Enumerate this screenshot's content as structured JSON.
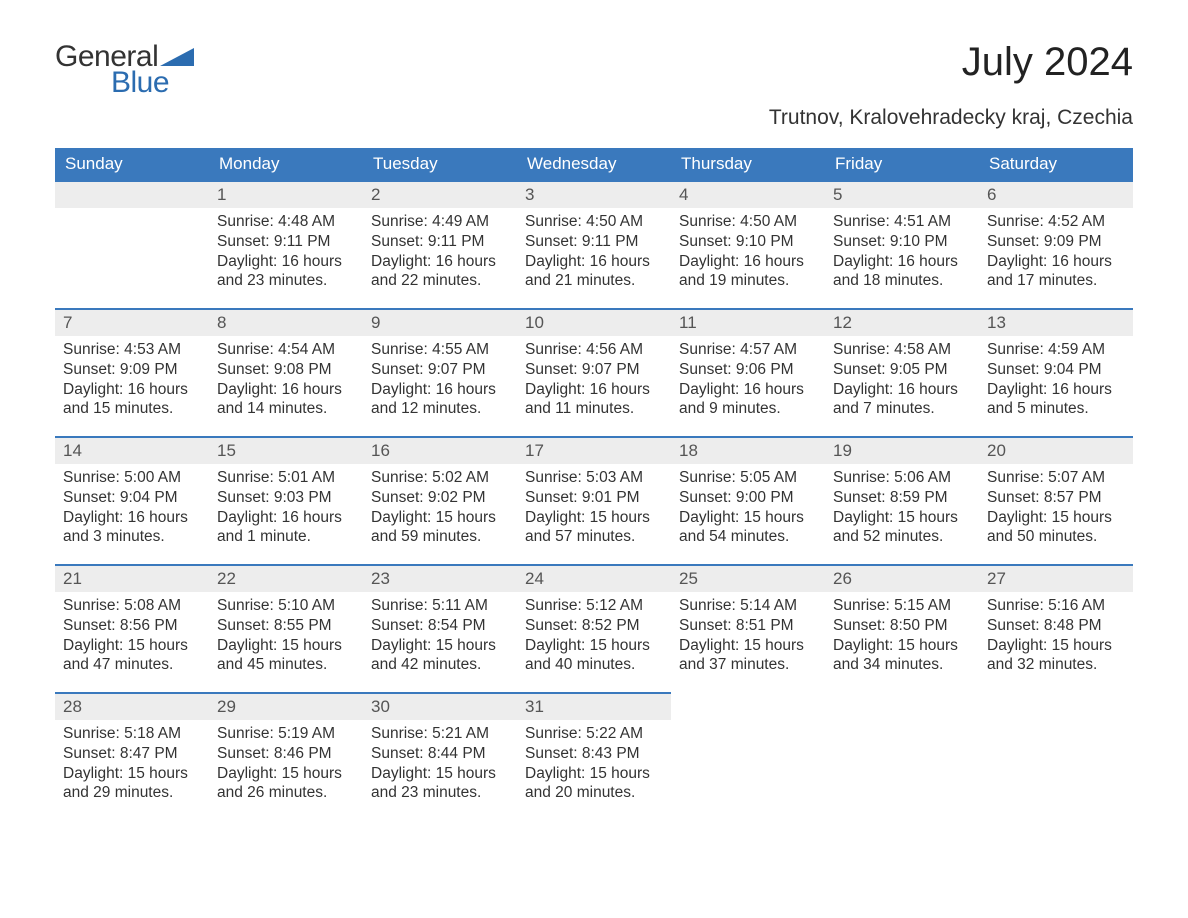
{
  "logo": {
    "general": "General",
    "blue": "Blue"
  },
  "title": "July 2024",
  "subtitle": "Trutnov, Kralovehradecky kraj, Czechia",
  "colors": {
    "header_bg": "#3a79bd",
    "header_text": "#ffffff",
    "dayhead_bg": "#ededed",
    "dayhead_border": "#3a79bd",
    "body_text": "#333333",
    "logo_blue": "#2b6cb0",
    "page_bg": "#ffffff"
  },
  "weekdays": [
    "Sunday",
    "Monday",
    "Tuesday",
    "Wednesday",
    "Thursday",
    "Friday",
    "Saturday"
  ],
  "first_weekday_offset": 1,
  "days": [
    {
      "n": "1",
      "sunrise": "Sunrise: 4:48 AM",
      "sunset": "Sunset: 9:11 PM",
      "daylight": "Daylight: 16 hours and 23 minutes."
    },
    {
      "n": "2",
      "sunrise": "Sunrise: 4:49 AM",
      "sunset": "Sunset: 9:11 PM",
      "daylight": "Daylight: 16 hours and 22 minutes."
    },
    {
      "n": "3",
      "sunrise": "Sunrise: 4:50 AM",
      "sunset": "Sunset: 9:11 PM",
      "daylight": "Daylight: 16 hours and 21 minutes."
    },
    {
      "n": "4",
      "sunrise": "Sunrise: 4:50 AM",
      "sunset": "Sunset: 9:10 PM",
      "daylight": "Daylight: 16 hours and 19 minutes."
    },
    {
      "n": "5",
      "sunrise": "Sunrise: 4:51 AM",
      "sunset": "Sunset: 9:10 PM",
      "daylight": "Daylight: 16 hours and 18 minutes."
    },
    {
      "n": "6",
      "sunrise": "Sunrise: 4:52 AM",
      "sunset": "Sunset: 9:09 PM",
      "daylight": "Daylight: 16 hours and 17 minutes."
    },
    {
      "n": "7",
      "sunrise": "Sunrise: 4:53 AM",
      "sunset": "Sunset: 9:09 PM",
      "daylight": "Daylight: 16 hours and 15 minutes."
    },
    {
      "n": "8",
      "sunrise": "Sunrise: 4:54 AM",
      "sunset": "Sunset: 9:08 PM",
      "daylight": "Daylight: 16 hours and 14 minutes."
    },
    {
      "n": "9",
      "sunrise": "Sunrise: 4:55 AM",
      "sunset": "Sunset: 9:07 PM",
      "daylight": "Daylight: 16 hours and 12 minutes."
    },
    {
      "n": "10",
      "sunrise": "Sunrise: 4:56 AM",
      "sunset": "Sunset: 9:07 PM",
      "daylight": "Daylight: 16 hours and 11 minutes."
    },
    {
      "n": "11",
      "sunrise": "Sunrise: 4:57 AM",
      "sunset": "Sunset: 9:06 PM",
      "daylight": "Daylight: 16 hours and 9 minutes."
    },
    {
      "n": "12",
      "sunrise": "Sunrise: 4:58 AM",
      "sunset": "Sunset: 9:05 PM",
      "daylight": "Daylight: 16 hours and 7 minutes."
    },
    {
      "n": "13",
      "sunrise": "Sunrise: 4:59 AM",
      "sunset": "Sunset: 9:04 PM",
      "daylight": "Daylight: 16 hours and 5 minutes."
    },
    {
      "n": "14",
      "sunrise": "Sunrise: 5:00 AM",
      "sunset": "Sunset: 9:04 PM",
      "daylight": "Daylight: 16 hours and 3 minutes."
    },
    {
      "n": "15",
      "sunrise": "Sunrise: 5:01 AM",
      "sunset": "Sunset: 9:03 PM",
      "daylight": "Daylight: 16 hours and 1 minute."
    },
    {
      "n": "16",
      "sunrise": "Sunrise: 5:02 AM",
      "sunset": "Sunset: 9:02 PM",
      "daylight": "Daylight: 15 hours and 59 minutes."
    },
    {
      "n": "17",
      "sunrise": "Sunrise: 5:03 AM",
      "sunset": "Sunset: 9:01 PM",
      "daylight": "Daylight: 15 hours and 57 minutes."
    },
    {
      "n": "18",
      "sunrise": "Sunrise: 5:05 AM",
      "sunset": "Sunset: 9:00 PM",
      "daylight": "Daylight: 15 hours and 54 minutes."
    },
    {
      "n": "19",
      "sunrise": "Sunrise: 5:06 AM",
      "sunset": "Sunset: 8:59 PM",
      "daylight": "Daylight: 15 hours and 52 minutes."
    },
    {
      "n": "20",
      "sunrise": "Sunrise: 5:07 AM",
      "sunset": "Sunset: 8:57 PM",
      "daylight": "Daylight: 15 hours and 50 minutes."
    },
    {
      "n": "21",
      "sunrise": "Sunrise: 5:08 AM",
      "sunset": "Sunset: 8:56 PM",
      "daylight": "Daylight: 15 hours and 47 minutes."
    },
    {
      "n": "22",
      "sunrise": "Sunrise: 5:10 AM",
      "sunset": "Sunset: 8:55 PM",
      "daylight": "Daylight: 15 hours and 45 minutes."
    },
    {
      "n": "23",
      "sunrise": "Sunrise: 5:11 AM",
      "sunset": "Sunset: 8:54 PM",
      "daylight": "Daylight: 15 hours and 42 minutes."
    },
    {
      "n": "24",
      "sunrise": "Sunrise: 5:12 AM",
      "sunset": "Sunset: 8:52 PM",
      "daylight": "Daylight: 15 hours and 40 minutes."
    },
    {
      "n": "25",
      "sunrise": "Sunrise: 5:14 AM",
      "sunset": "Sunset: 8:51 PM",
      "daylight": "Daylight: 15 hours and 37 minutes."
    },
    {
      "n": "26",
      "sunrise": "Sunrise: 5:15 AM",
      "sunset": "Sunset: 8:50 PM",
      "daylight": "Daylight: 15 hours and 34 minutes."
    },
    {
      "n": "27",
      "sunrise": "Sunrise: 5:16 AM",
      "sunset": "Sunset: 8:48 PM",
      "daylight": "Daylight: 15 hours and 32 minutes."
    },
    {
      "n": "28",
      "sunrise": "Sunrise: 5:18 AM",
      "sunset": "Sunset: 8:47 PM",
      "daylight": "Daylight: 15 hours and 29 minutes."
    },
    {
      "n": "29",
      "sunrise": "Sunrise: 5:19 AM",
      "sunset": "Sunset: 8:46 PM",
      "daylight": "Daylight: 15 hours and 26 minutes."
    },
    {
      "n": "30",
      "sunrise": "Sunrise: 5:21 AM",
      "sunset": "Sunset: 8:44 PM",
      "daylight": "Daylight: 15 hours and 23 minutes."
    },
    {
      "n": "31",
      "sunrise": "Sunrise: 5:22 AM",
      "sunset": "Sunset: 8:43 PM",
      "daylight": "Daylight: 15 hours and 20 minutes."
    }
  ]
}
